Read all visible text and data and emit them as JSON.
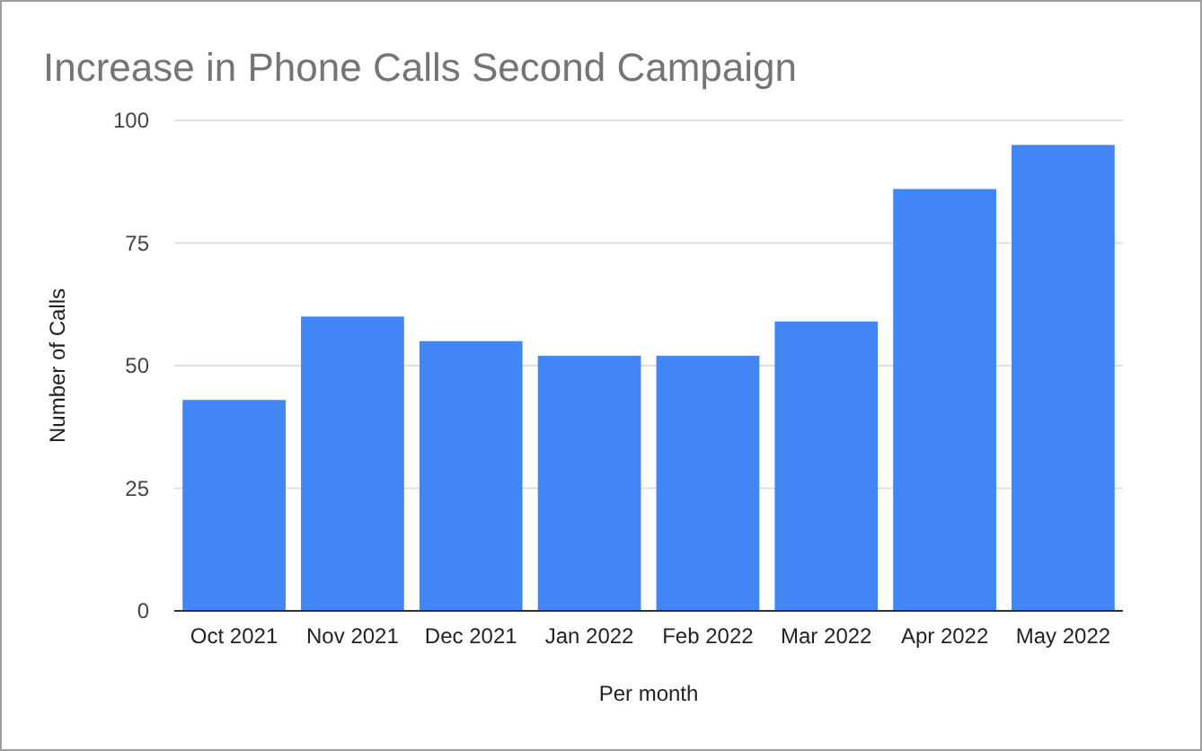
{
  "chart_data": {
    "type": "bar",
    "title": "Increase in Phone Calls Second Campaign",
    "xlabel": "Per month",
    "ylabel": "Number of Calls",
    "categories": [
      "Oct 2021",
      "Nov 2021",
      "Dec 2021",
      "Jan 2022",
      "Feb 2022",
      "Mar 2022",
      "Apr 2022",
      "May 2022"
    ],
    "values": [
      43,
      60,
      55,
      52,
      52,
      59,
      86,
      95
    ],
    "color": "#4285f4",
    "ylim": [
      0,
      100
    ],
    "yticks": [
      0,
      25,
      50,
      75,
      100
    ],
    "grid": "y"
  }
}
